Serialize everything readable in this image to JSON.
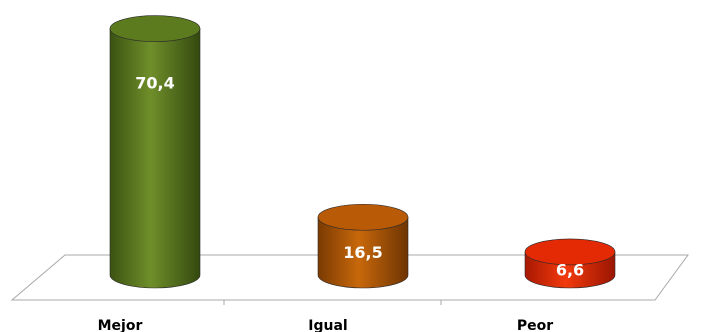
{
  "chart_data": {
    "type": "bar",
    "categories": [
      "Mejor",
      "Igual",
      "Peor"
    ],
    "values": [
      70.4,
      16.5,
      6.6
    ],
    "value_labels": [
      "70,4",
      "16,5",
      "6,6"
    ],
    "colors": [
      "#5c7a1e",
      "#b85a06",
      "#e42a05"
    ],
    "grid": false,
    "legend": "none",
    "bar_shape": "cylinder-3d"
  }
}
